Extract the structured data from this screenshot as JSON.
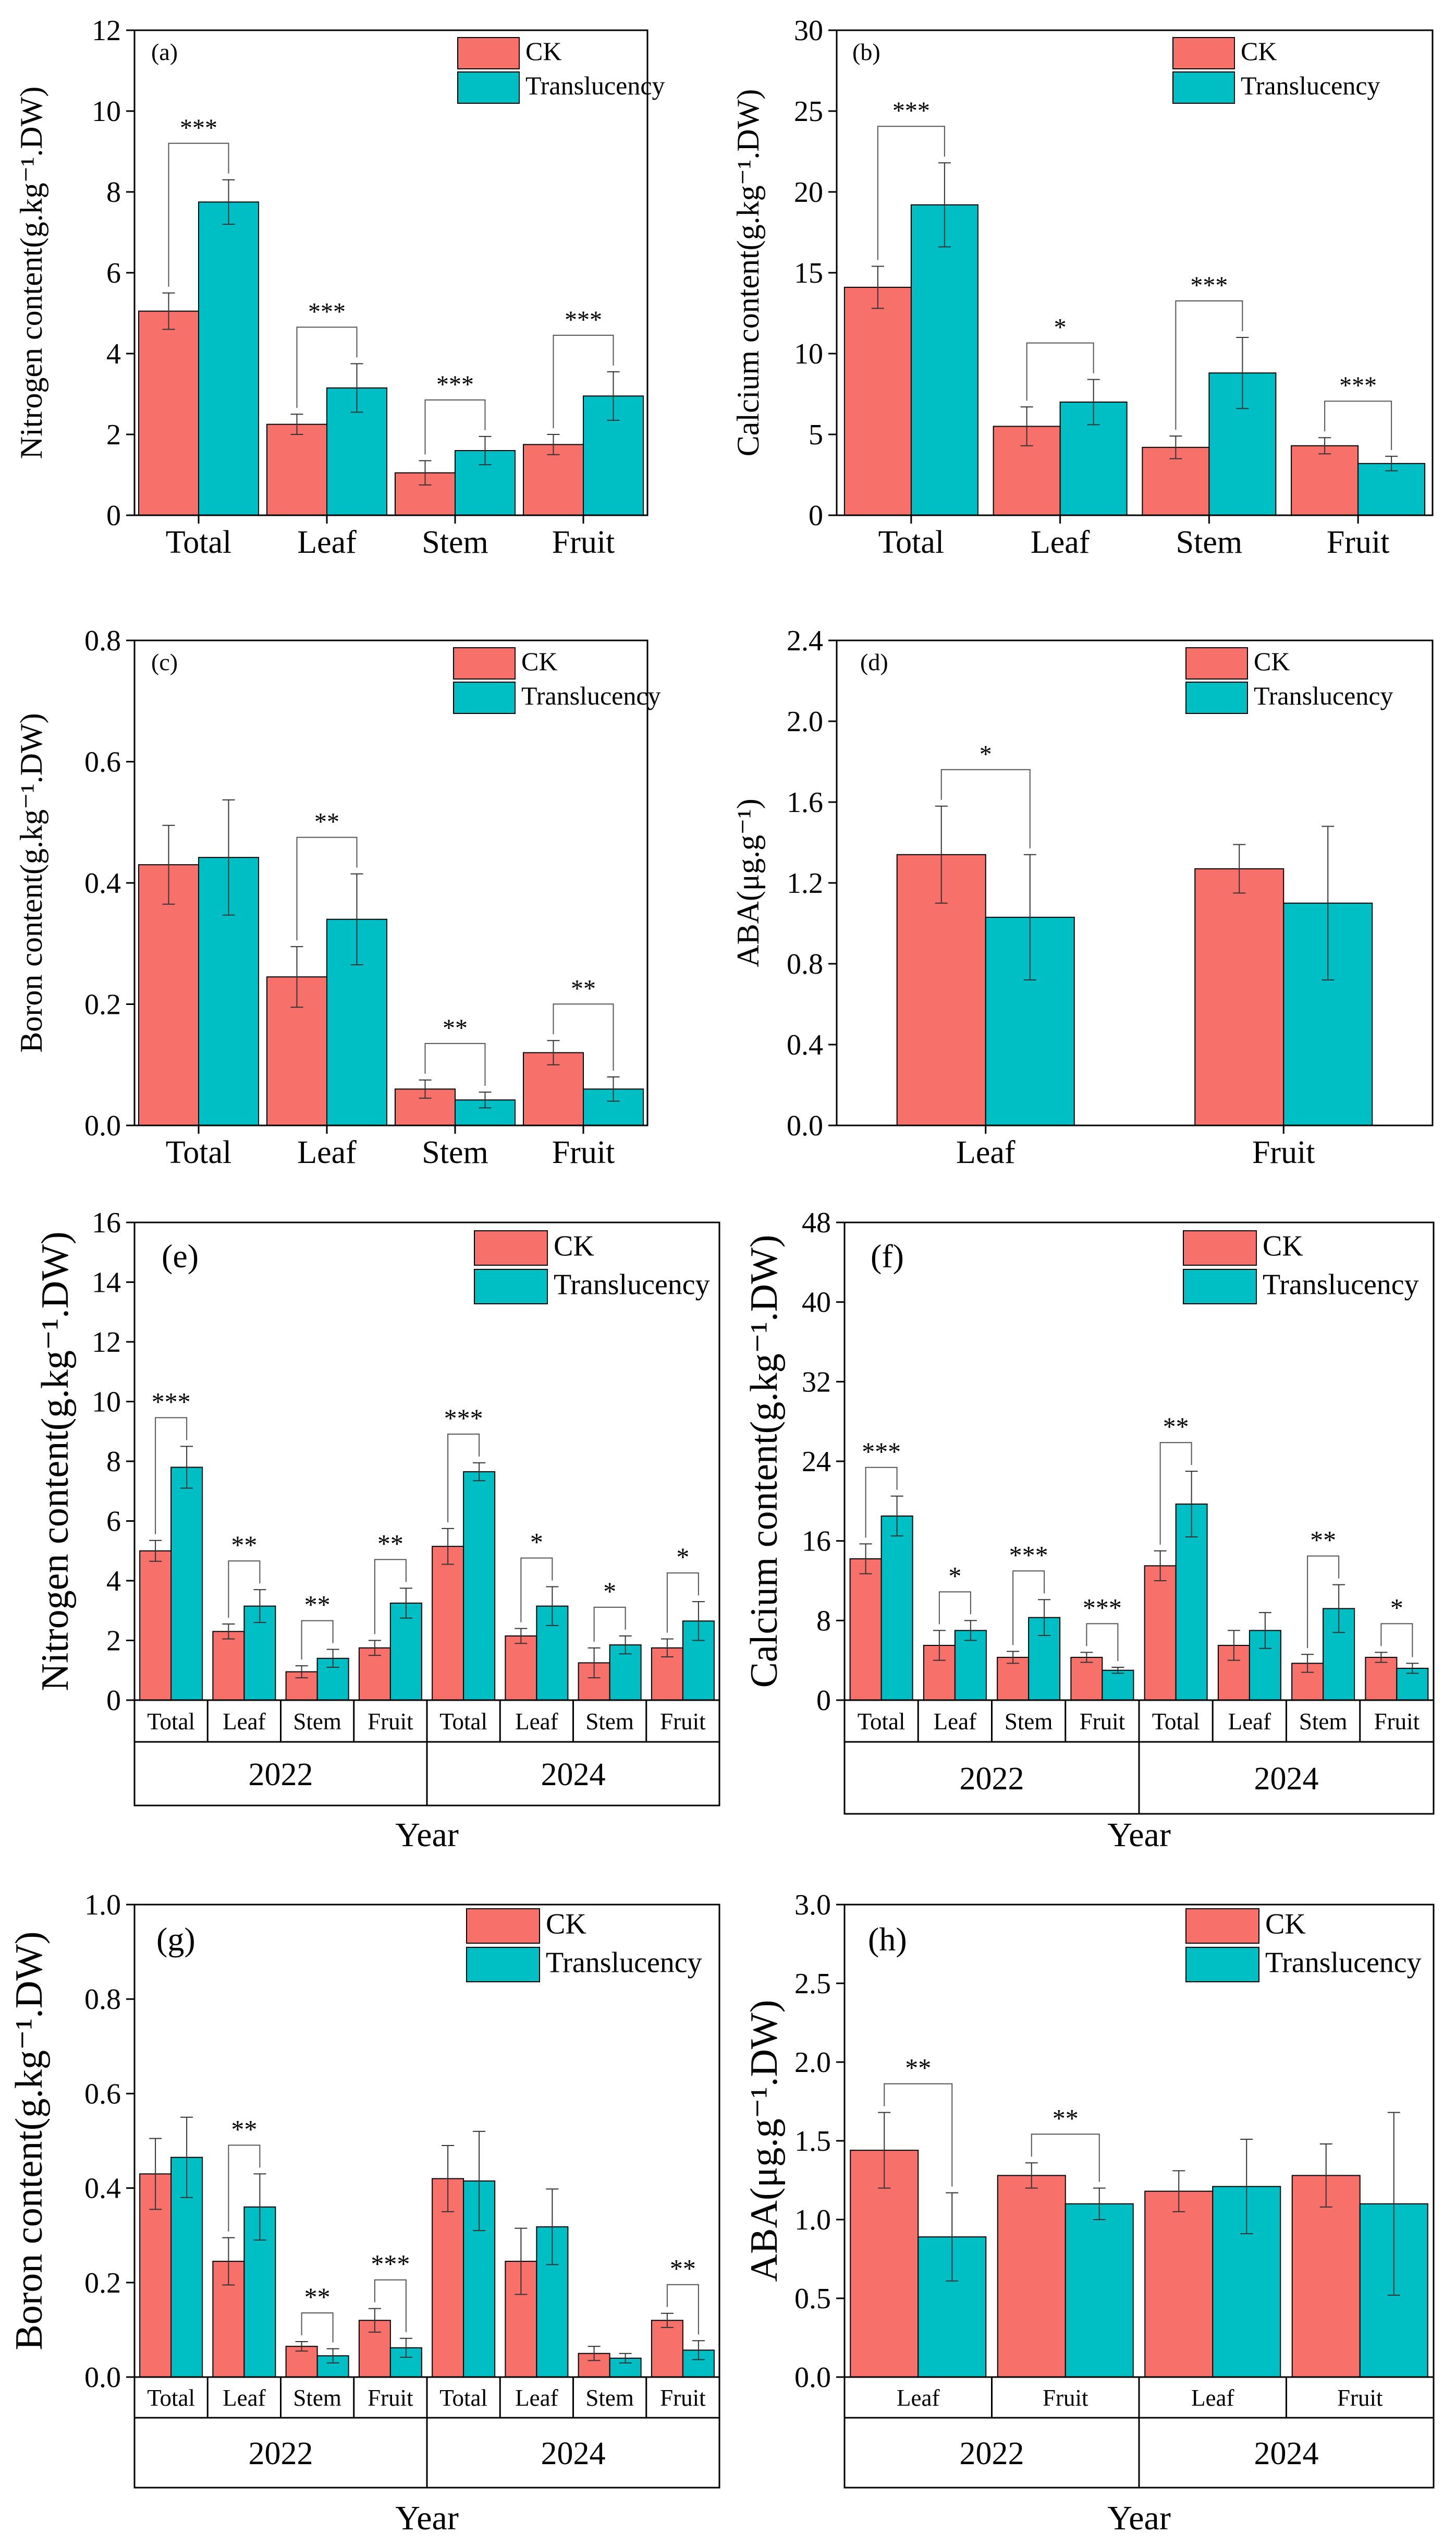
{
  "colors": {
    "ck": "#F8706A",
    "translucency": "#00BFC4"
  },
  "chart_data": [
    {
      "type": "bar",
      "panel_label": "(a)",
      "ylabel": "Nitrogen content(g.kg⁻¹.DW)",
      "ylim": [
        0,
        12
      ],
      "yticks": [
        "0",
        "2",
        "4",
        "6",
        "8",
        "10",
        "12"
      ],
      "categories": [
        "Total",
        "Leaf",
        "Stem",
        "Fruit"
      ],
      "series": [
        {
          "name": "CK",
          "values": [
            5.05,
            2.25,
            1.05,
            1.75
          ],
          "errors": [
            0.45,
            0.25,
            0.3,
            0.25
          ]
        },
        {
          "name": "Translucency",
          "values": [
            7.75,
            3.15,
            1.6,
            2.95
          ],
          "errors": [
            0.55,
            0.6,
            0.35,
            0.6
          ]
        }
      ],
      "significance": [
        "***",
        "***",
        "***",
        "***"
      ],
      "legend": [
        "CK",
        "Translucency"
      ]
    },
    {
      "type": "bar",
      "panel_label": "(b)",
      "ylabel": "Calcium content(g.kg⁻¹.DW)",
      "ylim": [
        0,
        30
      ],
      "yticks": [
        "0",
        "5",
        "10",
        "15",
        "20",
        "25",
        "30"
      ],
      "categories": [
        "Total",
        "Leaf",
        "Stem",
        "Fruit"
      ],
      "series": [
        {
          "name": "CK",
          "values": [
            14.1,
            5.5,
            4.2,
            4.3
          ],
          "errors": [
            1.3,
            1.2,
            0.7,
            0.5
          ]
        },
        {
          "name": "Translucency",
          "values": [
            19.2,
            7.0,
            8.8,
            3.2
          ],
          "errors": [
            2.6,
            1.4,
            2.2,
            0.45
          ]
        }
      ],
      "significance": [
        "***",
        "*",
        "***",
        "***"
      ],
      "legend": [
        "CK",
        "Translucency"
      ]
    },
    {
      "type": "bar",
      "panel_label": "(c)",
      "ylabel": "Boron content(g.kg⁻¹.DW)",
      "ylim": [
        0,
        0.8
      ],
      "yticks": [
        "0.0",
        "0.2",
        "0.4",
        "0.6",
        "0.8"
      ],
      "categories": [
        "Total",
        "Leaf",
        "Stem",
        "Fruit"
      ],
      "series": [
        {
          "name": "CK",
          "values": [
            0.43,
            0.245,
            0.06,
            0.12
          ],
          "errors": [
            0.065,
            0.05,
            0.015,
            0.02
          ]
        },
        {
          "name": "Translucency",
          "values": [
            0.442,
            0.34,
            0.042,
            0.06
          ],
          "errors": [
            0.095,
            0.075,
            0.013,
            0.02
          ]
        }
      ],
      "significance": [
        "",
        "**",
        "**",
        "**"
      ],
      "legend": [
        "CK",
        "Translucency"
      ]
    },
    {
      "type": "bar",
      "panel_label": "(d)",
      "ylabel": "ABA(μg.g⁻¹)",
      "ylim": [
        0,
        2.4
      ],
      "yticks": [
        "0.0",
        "0.4",
        "0.8",
        "1.2",
        "1.6",
        "2.0",
        "2.4"
      ],
      "categories": [
        "Leaf",
        "Fruit"
      ],
      "series": [
        {
          "name": "CK",
          "values": [
            1.34,
            1.27
          ],
          "errors": [
            0.24,
            0.12
          ]
        },
        {
          "name": "Translucency",
          "values": [
            1.03,
            1.1
          ],
          "errors": [
            0.31,
            0.38
          ]
        }
      ],
      "significance": [
        "*",
        ""
      ],
      "legend": [
        "CK",
        "Translucency"
      ]
    },
    {
      "type": "bar",
      "panel_label": "(e)",
      "ylabel": "Nitrogen content(g.kg⁻¹.DW)",
      "xlabel": "Year",
      "ylim": [
        0,
        16
      ],
      "yticks": [
        "0",
        "2",
        "4",
        "6",
        "8",
        "10",
        "12",
        "14",
        "16"
      ],
      "groups": [
        "2022",
        "2024"
      ],
      "categories": [
        "Total",
        "Leaf",
        "Stem",
        "Fruit",
        "Total",
        "Leaf",
        "Stem",
        "Fruit"
      ],
      "series": [
        {
          "name": "CK",
          "values": [
            5.0,
            2.3,
            0.95,
            1.75,
            5.15,
            2.15,
            1.25,
            1.75
          ],
          "errors": [
            0.35,
            0.25,
            0.2,
            0.25,
            0.6,
            0.25,
            0.5,
            0.3
          ]
        },
        {
          "name": "Translucency",
          "values": [
            7.8,
            3.15,
            1.4,
            3.25,
            7.65,
            3.15,
            1.85,
            2.65
          ],
          "errors": [
            0.7,
            0.55,
            0.3,
            0.5,
            0.3,
            0.65,
            0.3,
            0.65
          ]
        }
      ],
      "significance": [
        "***",
        "**",
        "**",
        "**",
        "***",
        "*",
        "*",
        "*"
      ],
      "legend": [
        "CK",
        "Translucency"
      ]
    },
    {
      "type": "bar",
      "panel_label": "(f)",
      "ylabel": "Calcium content(g.kg⁻¹.DW)",
      "xlabel": "Year",
      "ylim": [
        0,
        48
      ],
      "yticks": [
        "0",
        "8",
        "16",
        "24",
        "32",
        "40",
        "48"
      ],
      "groups": [
        "2022",
        "2024"
      ],
      "categories": [
        "Total",
        "Leaf",
        "Stem",
        "Fruit",
        "Total",
        "Leaf",
        "Stem",
        "Fruit"
      ],
      "series": [
        {
          "name": "CK",
          "values": [
            14.2,
            5.5,
            4.3,
            4.3,
            13.5,
            5.5,
            3.7,
            4.3
          ],
          "errors": [
            1.5,
            1.5,
            0.6,
            0.5,
            1.5,
            1.5,
            0.9,
            0.5
          ]
        },
        {
          "name": "Translucency",
          "values": [
            18.5,
            7.0,
            8.3,
            3.0,
            19.7,
            7.0,
            9.2,
            3.2
          ],
          "errors": [
            2.0,
            1.0,
            1.8,
            0.3,
            3.3,
            1.8,
            2.4,
            0.5
          ]
        }
      ],
      "significance": [
        "***",
        "*",
        "***",
        "***",
        "**",
        "",
        "**",
        "*"
      ],
      "legend": [
        "CK",
        "Translucency"
      ]
    },
    {
      "type": "bar",
      "panel_label": "(g)",
      "ylabel": "Boron content(g.kg⁻¹.DW)",
      "xlabel": "Year",
      "ylim": [
        0,
        1.0
      ],
      "yticks": [
        "0.0",
        "0.2",
        "0.4",
        "0.6",
        "0.8",
        "1.0"
      ],
      "groups": [
        "2022",
        "2024"
      ],
      "categories": [
        "Total",
        "Leaf",
        "Stem",
        "Fruit",
        "Total",
        "Leaf",
        "Stem",
        "Fruit"
      ],
      "series": [
        {
          "name": "CK",
          "values": [
            0.43,
            0.245,
            0.065,
            0.12,
            0.42,
            0.245,
            0.05,
            0.12
          ],
          "errors": [
            0.075,
            0.05,
            0.01,
            0.025,
            0.07,
            0.07,
            0.015,
            0.015
          ]
        },
        {
          "name": "Translucency",
          "values": [
            0.465,
            0.36,
            0.045,
            0.062,
            0.415,
            0.318,
            0.04,
            0.057
          ],
          "errors": [
            0.085,
            0.07,
            0.015,
            0.02,
            0.105,
            0.08,
            0.01,
            0.02
          ]
        }
      ],
      "significance": [
        "",
        "**",
        "**",
        "***",
        "",
        "",
        "",
        "**"
      ],
      "legend": [
        "CK",
        "Translucency"
      ]
    },
    {
      "type": "bar",
      "panel_label": "(h)",
      "ylabel": "ABA(μg.g⁻¹.DW)",
      "xlabel": "Year",
      "ylim": [
        0,
        3.0
      ],
      "yticks": [
        "0.0",
        "0.5",
        "1.0",
        "1.5",
        "2.0",
        "2.5",
        "3.0"
      ],
      "groups": [
        "2022",
        "2024"
      ],
      "categories": [
        "Leaf",
        "Fruit",
        "Leaf",
        "Fruit"
      ],
      "series": [
        {
          "name": "CK",
          "values": [
            1.44,
            1.28,
            1.18,
            1.28
          ],
          "errors": [
            0.24,
            0.08,
            0.13,
            0.2
          ]
        },
        {
          "name": "Translucency",
          "values": [
            0.89,
            1.1,
            1.21,
            1.1
          ],
          "errors": [
            0.28,
            0.1,
            0.3,
            0.58
          ]
        }
      ],
      "significance": [
        "**",
        "**",
        "",
        ""
      ],
      "legend": [
        "CK",
        "Translucency"
      ]
    }
  ]
}
